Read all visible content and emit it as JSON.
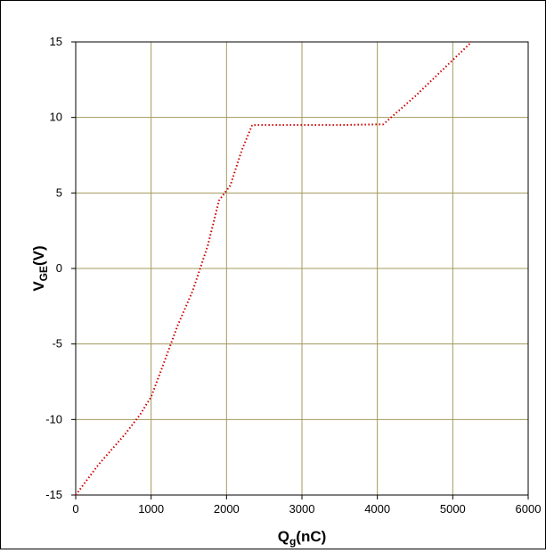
{
  "chart_data": {
    "type": "line",
    "title": "",
    "xlabel": {
      "main": "Q",
      "sub": "g",
      "rest": "(nC)"
    },
    "ylabel": {
      "main": "V",
      "sub": "GE",
      "rest": "(V)"
    },
    "xlim": [
      0,
      6000
    ],
    "ylim": [
      -15,
      15
    ],
    "xticks": [
      0,
      1000,
      2000,
      3000,
      4000,
      5000,
      6000
    ],
    "yticks": [
      -15,
      -10,
      -5,
      0,
      5,
      10,
      15
    ],
    "xtick_labels": [
      "0",
      "1000",
      "2000",
      "3000",
      "4000",
      "5000",
      "6000"
    ],
    "ytick_labels": [
      "-15",
      "-10",
      "-5",
      "0",
      "5",
      "10",
      "15"
    ],
    "grid": true,
    "legend": "none",
    "colors": {
      "series": "#cc0000",
      "grid": "#a39a5c",
      "axis": "#000000"
    },
    "series": [
      {
        "line_style": "dotted",
        "x": [
          0,
          300,
          650,
          850,
          1000,
          1150,
          1350,
          1550,
          1750,
          1900,
          2050,
          2200,
          2340,
          3000,
          3500,
          4080,
          4500,
          5000,
          5250
        ],
        "y": [
          -15,
          -13,
          -11,
          -9.7,
          -8.5,
          -6.5,
          -3.8,
          -1.5,
          1.5,
          4.5,
          5.5,
          7.8,
          9.5,
          9.5,
          9.5,
          9.55,
          11.4,
          13.8,
          15
        ]
      }
    ]
  }
}
